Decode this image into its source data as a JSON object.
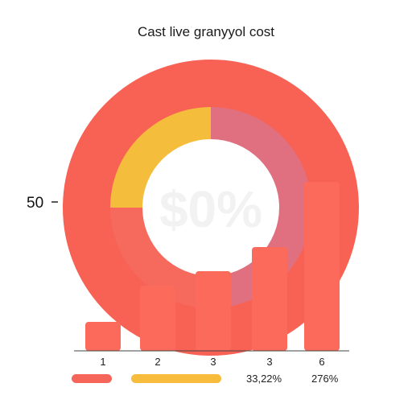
{
  "chart_data": {
    "type": "bar",
    "title": "Cast live granyyol cost",
    "y_ticks": [
      "50"
    ],
    "categories": [
      "1",
      "2",
      "3",
      "3",
      "6"
    ],
    "values": [
      12,
      27,
      33,
      43,
      70
    ],
    "ylim": [
      0,
      100
    ],
    "ring_series": [
      {
        "color": "#f5bd3c",
        "value": 25
      },
      {
        "color": "#e07080",
        "value": 35
      },
      {
        "color": "#f56a5c",
        "value": 40
      }
    ],
    "background_text": "$0%",
    "legend": [
      {
        "color": "#f5655a",
        "label": ""
      },
      {
        "color": "#f7bc3c",
        "label": ""
      },
      {
        "color": "",
        "label": "33,22%"
      },
      {
        "color": "",
        "label": "276%"
      }
    ],
    "colors": {
      "bar": "#fb6a5a",
      "outer_ring": "#f86255",
      "inner_ring_yellow": "#f5bd3c",
      "inner_ring_pink": "#e07080",
      "inner_ring_red": "#f56a5c",
      "axis": "#444444"
    },
    "grid": false
  }
}
